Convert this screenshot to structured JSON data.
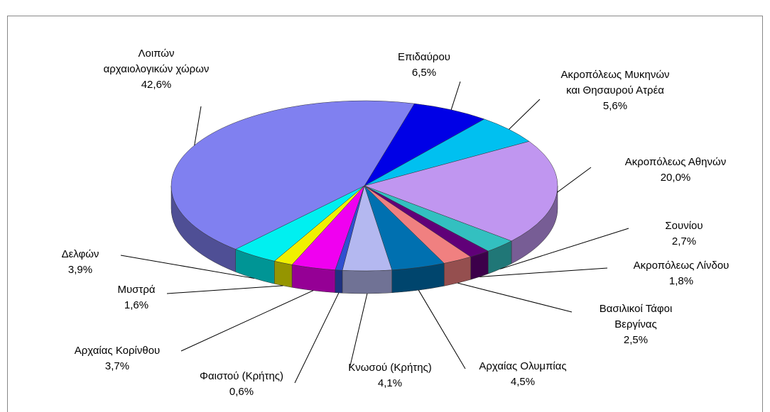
{
  "chart_data": {
    "type": "pie3d",
    "categories": [
      "Επιδαύρου",
      "Ακροπόλεως Μυκηνών\nκαι Θησαυρού Ατρέα",
      "Ακροπόλεως Αθηνών",
      "Σουνίου",
      "Ακροπόλεως Λίνδου",
      "Βασιλικοί Τάφοι\nΒεργίνας",
      "Αρχαίας Ολυμπίας",
      "Κνωσού (Κρήτης)",
      "Φαιστού (Κρήτης)",
      "Αρχαίας Κορίνθου",
      "Μυστρά",
      "Δελφών",
      "Λοιπών\nαρχαιολογικών χώρων"
    ],
    "values": [
      6.5,
      5.6,
      20.0,
      2.7,
      1.8,
      2.5,
      4.5,
      4.1,
      0.6,
      3.7,
      1.6,
      3.9,
      42.6
    ],
    "value_labels": [
      "6,5%",
      "5,6%",
      "20,0%",
      "2,7%",
      "1,8%",
      "2,5%",
      "4,5%",
      "4,1%",
      "0,6%",
      "3,7%",
      "1,6%",
      "3,9%",
      "42,6%"
    ],
    "colors": [
      "#0000e6",
      "#00c0f0",
      "#c096f0",
      "#33c0c0",
      "#600078",
      "#f08080",
      "#0070b0",
      "#b4b8f0",
      "#3050d0",
      "#f000f0",
      "#f0f000",
      "#00f0f0",
      "#8080f0"
    ]
  }
}
